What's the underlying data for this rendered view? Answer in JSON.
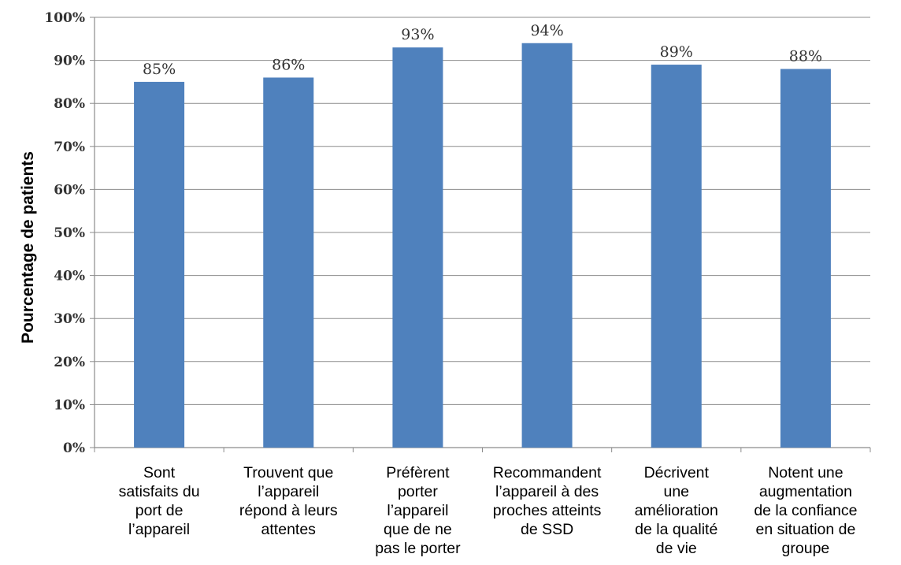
{
  "chart_data": {
    "type": "bar",
    "title": "",
    "xlabel": "",
    "ylabel": "Pourcentage de patients",
    "ylim": [
      0,
      100
    ],
    "yticks": [
      0,
      10,
      20,
      30,
      40,
      50,
      60,
      70,
      80,
      90,
      100
    ],
    "ytick_suffix": "%",
    "grid": true,
    "legend": "none",
    "bar_color": "#4F81BD",
    "grid_color": "#8C8C8C",
    "categories": [
      [
        "Sont",
        "satisfaits du",
        "port de",
        "l’appareil"
      ],
      [
        "Trouvent que",
        "l’appareil",
        "répond à leurs",
        "attentes"
      ],
      [
        "Préfèrent",
        "porter",
        "l’appareil",
        "que de ne",
        "pas le porter"
      ],
      [
        "Recommandent",
        "l’appareil à des",
        "proches atteints",
        "de SSD"
      ],
      [
        "Décrivent",
        "une",
        "amélioration",
        "de la qualité",
        "de vie"
      ],
      [
        "Notent une",
        "augmentation",
        "de la confiance",
        "en situation de",
        "groupe"
      ]
    ],
    "values": [
      85,
      86,
      93,
      94,
      89,
      88
    ],
    "data_labels": [
      "85%",
      "86%",
      "93%",
      "94%",
      "89%",
      "88%"
    ]
  }
}
